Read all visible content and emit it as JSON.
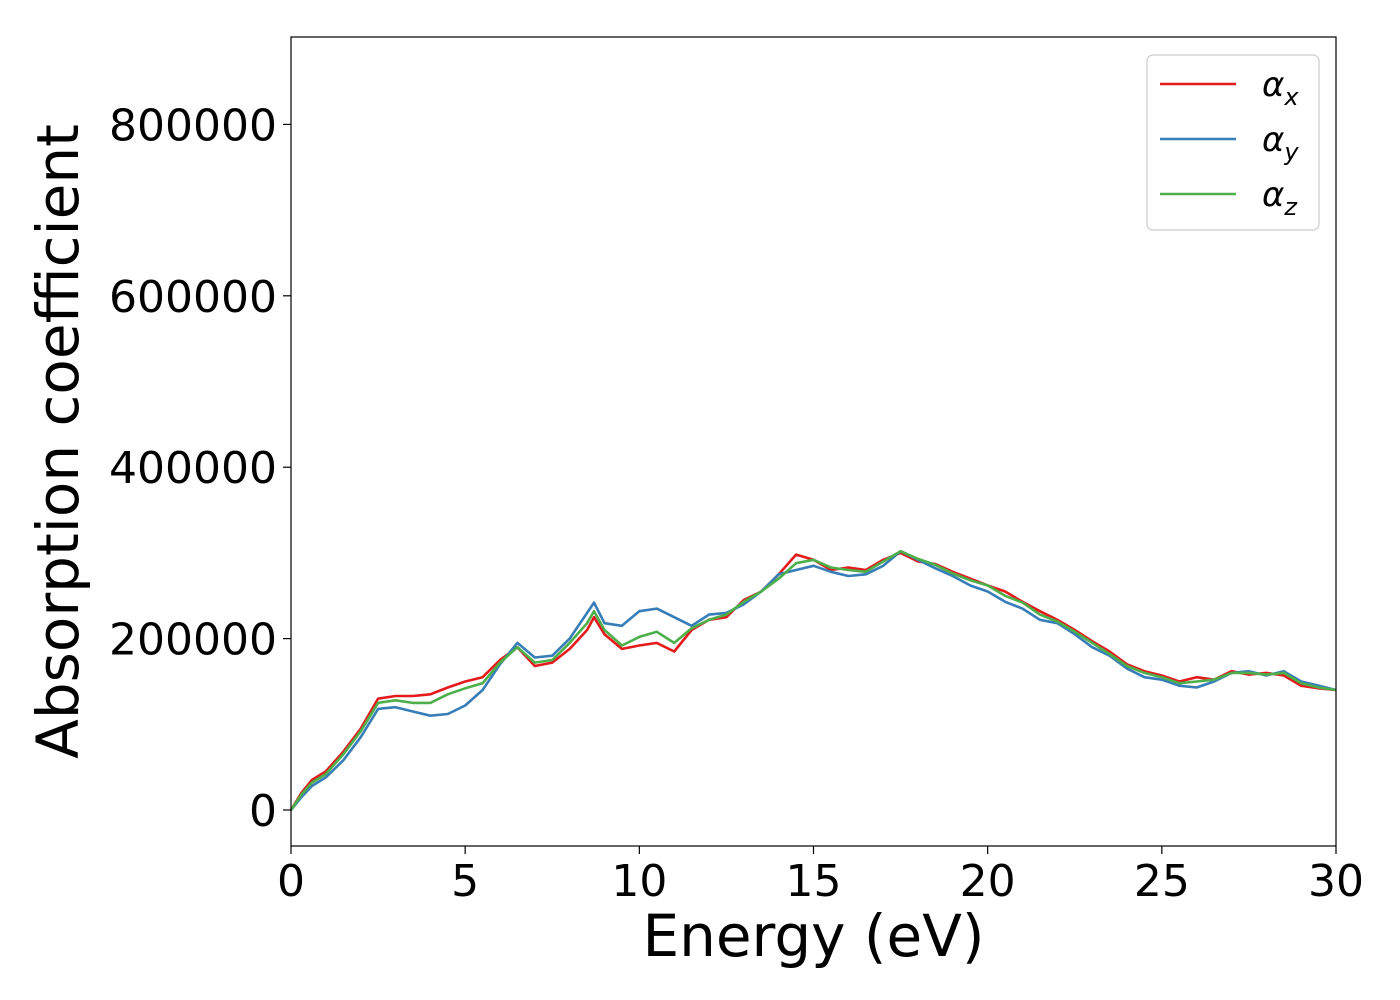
{
  "chart_data": {
    "type": "line",
    "xlabel": "Energy (eV)",
    "ylabel": "Absorption coefficient",
    "xlim": [
      0,
      30
    ],
    "ylim": [
      -42000,
      902000
    ],
    "xticks": [
      0,
      5,
      10,
      15,
      20,
      25,
      30
    ],
    "yticks": [
      0,
      200000,
      400000,
      600000,
      800000
    ],
    "grid": false,
    "legend_position": "top-right",
    "series": [
      {
        "name": "α_x",
        "symbol": "α",
        "subscript": "x",
        "color": "#e41a1c",
        "x": [
          0,
          0.3,
          0.6,
          1.0,
          1.5,
          2.0,
          2.5,
          3.0,
          3.5,
          4.0,
          4.5,
          5.0,
          5.5,
          6.0,
          6.5,
          7.0,
          7.5,
          8.0,
          8.5,
          8.7,
          9.0,
          9.5,
          10.0,
          10.5,
          11.0,
          11.5,
          12.0,
          12.5,
          13.0,
          13.5,
          14.0,
          14.5,
          15.0,
          15.5,
          16.0,
          16.5,
          17.0,
          17.5,
          18.0,
          18.5,
          19.0,
          19.5,
          20.0,
          20.5,
          21.0,
          21.5,
          22.0,
          22.5,
          23.0,
          23.5,
          24.0,
          24.5,
          25.0,
          25.5,
          26.0,
          26.5,
          27.0,
          27.5,
          28.0,
          28.5,
          29.0,
          29.5,
          30.0
        ],
        "y": [
          0,
          20000,
          35000,
          45000,
          68000,
          95000,
          130000,
          133000,
          133000,
          135000,
          143000,
          150000,
          155000,
          175000,
          190000,
          168000,
          172000,
          188000,
          210000,
          225000,
          205000,
          188000,
          192000,
          195000,
          185000,
          210000,
          222000,
          225000,
          245000,
          255000,
          275000,
          298000,
          292000,
          280000,
          283000,
          280000,
          292000,
          300000,
          290000,
          287000,
          278000,
          270000,
          262000,
          255000,
          243000,
          232000,
          222000,
          210000,
          197000,
          185000,
          170000,
          162000,
          157000,
          150000,
          155000,
          152000,
          162000,
          158000,
          160000,
          157000,
          145000,
          142000,
          140000
        ]
      },
      {
        "name": "α_y",
        "symbol": "α",
        "subscript": "y",
        "color": "#377eb8",
        "x": [
          0,
          0.3,
          0.6,
          1.0,
          1.5,
          2.0,
          2.5,
          3.0,
          3.5,
          4.0,
          4.5,
          5.0,
          5.5,
          6.0,
          6.5,
          7.0,
          7.5,
          8.0,
          8.5,
          8.7,
          9.0,
          9.5,
          10.0,
          10.5,
          11.0,
          11.5,
          12.0,
          12.5,
          13.0,
          13.5,
          14.0,
          14.5,
          15.0,
          15.5,
          16.0,
          16.5,
          17.0,
          17.5,
          18.0,
          18.5,
          19.0,
          19.5,
          20.0,
          20.5,
          21.0,
          21.5,
          22.0,
          22.5,
          23.0,
          23.5,
          24.0,
          24.5,
          25.0,
          25.5,
          26.0,
          26.5,
          27.0,
          27.5,
          28.0,
          28.5,
          29.0,
          29.5,
          30.0
        ],
        "y": [
          0,
          15000,
          28000,
          38000,
          58000,
          85000,
          118000,
          120000,
          115000,
          110000,
          112000,
          122000,
          140000,
          170000,
          195000,
          178000,
          180000,
          200000,
          230000,
          242000,
          218000,
          215000,
          232000,
          235000,
          225000,
          215000,
          228000,
          230000,
          240000,
          255000,
          275000,
          280000,
          285000,
          278000,
          273000,
          275000,
          285000,
          302000,
          292000,
          282000,
          273000,
          262000,
          255000,
          243000,
          235000,
          222000,
          218000,
          205000,
          190000,
          180000,
          165000,
          155000,
          152000,
          145000,
          143000,
          150000,
          160000,
          162000,
          157000,
          162000,
          150000,
          145000,
          140000
        ]
      },
      {
        "name": "α_z",
        "symbol": "α",
        "subscript": "z",
        "color": "#4daf4a",
        "x": [
          0,
          0.3,
          0.6,
          1.0,
          1.5,
          2.0,
          2.5,
          3.0,
          3.5,
          4.0,
          4.5,
          5.0,
          5.5,
          6.0,
          6.5,
          7.0,
          7.5,
          8.0,
          8.5,
          8.7,
          9.0,
          9.5,
          10.0,
          10.5,
          11.0,
          11.5,
          12.0,
          12.5,
          13.0,
          13.5,
          14.0,
          14.5,
          15.0,
          15.5,
          16.0,
          16.5,
          17.0,
          17.5,
          18.0,
          18.5,
          19.0,
          19.5,
          20.0,
          20.5,
          21.0,
          21.5,
          22.0,
          22.5,
          23.0,
          23.5,
          24.0,
          24.5,
          25.0,
          25.5,
          26.0,
          26.5,
          27.0,
          27.5,
          28.0,
          28.5,
          29.0,
          29.5,
          30.0
        ],
        "y": [
          0,
          18000,
          32000,
          42000,
          65000,
          92000,
          125000,
          128000,
          125000,
          125000,
          135000,
          142000,
          148000,
          172000,
          190000,
          172000,
          175000,
          195000,
          218000,
          232000,
          210000,
          192000,
          202000,
          208000,
          195000,
          212000,
          222000,
          228000,
          243000,
          255000,
          270000,
          288000,
          292000,
          283000,
          280000,
          278000,
          290000,
          302000,
          293000,
          286000,
          276000,
          268000,
          262000,
          250000,
          242000,
          228000,
          220000,
          208000,
          195000,
          182000,
          168000,
          160000,
          155000,
          148000,
          150000,
          152000,
          160000,
          160000,
          158000,
          160000,
          148000,
          143000,
          140000
        ]
      }
    ]
  }
}
